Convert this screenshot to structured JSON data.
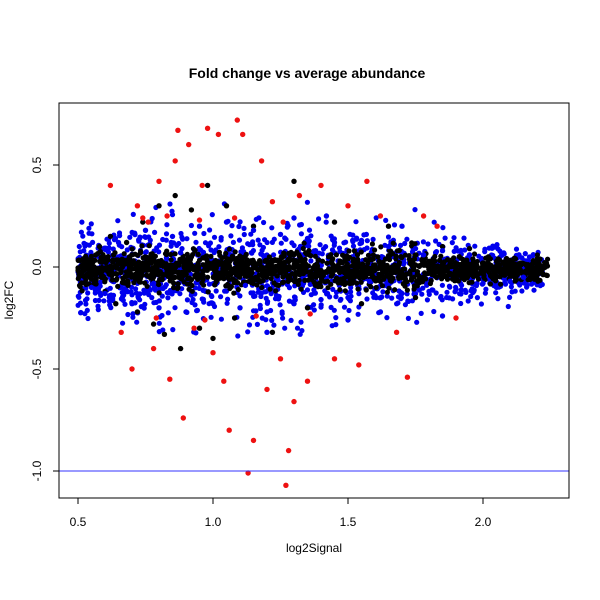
{
  "chart_data": {
    "type": "scatter",
    "title": "Fold change vs average abundance",
    "xlabel": "log2Signal",
    "ylabel": "log2FC",
    "xlim": [
      0.5,
      2.25
    ],
    "ylim": [
      -1.07,
      0.73
    ],
    "x_ticks": [
      0.5,
      1.0,
      1.5,
      2.0
    ],
    "x_tick_labels": [
      "0.5",
      "1.0",
      "1.5",
      "2.0"
    ],
    "y_ticks": [
      -1.0,
      -0.5,
      0.0,
      0.5
    ],
    "y_tick_labels": [
      "-1.0",
      "-0.5",
      "0.0",
      "0.5"
    ],
    "grid": false,
    "legend": "none",
    "reference_lines": [
      {
        "orientation": "horizontal",
        "y": -1.0,
        "color": "#3333ff"
      }
    ],
    "series": [
      {
        "color": "#000000",
        "points": [
          [
            0.52,
            0.04
          ],
          [
            0.55,
            -0.06
          ],
          [
            0.58,
            0.1
          ],
          [
            0.6,
            -0.12
          ],
          [
            0.62,
            0.15
          ],
          [
            0.64,
            -0.18
          ],
          [
            0.68,
            0.12
          ],
          [
            0.72,
            -0.22
          ],
          [
            0.74,
            0.22
          ],
          [
            0.78,
            -0.28
          ],
          [
            0.8,
            0.3
          ],
          [
            0.82,
            -0.33
          ],
          [
            0.86,
            0.35
          ],
          [
            0.88,
            -0.4
          ],
          [
            0.92,
            0.28
          ],
          [
            0.95,
            -0.3
          ],
          [
            0.98,
            0.4
          ],
          [
            1.0,
            -0.35
          ],
          [
            1.05,
            0.3
          ],
          [
            1.08,
            -0.25
          ],
          [
            1.15,
            0.2
          ],
          [
            1.22,
            -0.32
          ],
          [
            1.3,
            0.42
          ],
          [
            1.35,
            -0.2
          ],
          [
            1.45,
            0.22
          ],
          [
            1.55,
            -0.18
          ],
          [
            1.65,
            0.2
          ],
          [
            1.75,
            -0.15
          ],
          [
            1.85,
            0.1
          ],
          [
            1.95,
            0.09
          ],
          [
            2.02,
            0.05
          ],
          [
            2.08,
            -0.04
          ],
          [
            2.12,
            0.04
          ],
          [
            2.18,
            -0.02
          ],
          [
            2.22,
            -0.01
          ],
          [
            0.54,
            0.01
          ],
          [
            0.66,
            -0.02
          ],
          [
            0.9,
            0.02
          ],
          [
            1.1,
            -0.01
          ],
          [
            1.25,
            0.01
          ],
          [
            1.4,
            -0.02
          ],
          [
            1.6,
            0.01
          ],
          [
            1.8,
            -0.01
          ],
          [
            2.0,
            0.02
          ],
          [
            0.7,
            0.06
          ],
          [
            0.96,
            -0.05
          ],
          [
            1.5,
            0.04
          ],
          [
            1.7,
            -0.05
          ]
        ]
      },
      {
        "color": "#0000ee",
        "points": [
          [
            0.55,
            -0.1
          ],
          [
            0.6,
            -0.13
          ],
          [
            0.65,
            0.12
          ],
          [
            0.7,
            -0.18
          ],
          [
            0.75,
            0.18
          ],
          [
            0.8,
            -0.2
          ],
          [
            0.85,
            0.15
          ],
          [
            0.9,
            -0.22
          ],
          [
            0.95,
            0.2
          ],
          [
            1.0,
            -0.18
          ],
          [
            1.05,
            0.22
          ],
          [
            1.1,
            -0.2
          ],
          [
            1.15,
            0.18
          ],
          [
            1.2,
            -0.22
          ],
          [
            1.25,
            0.16
          ],
          [
            1.3,
            -0.18
          ],
          [
            1.35,
            0.14
          ],
          [
            1.4,
            -0.16
          ],
          [
            1.45,
            0.12
          ],
          [
            1.5,
            -0.15
          ],
          [
            1.55,
            0.13
          ],
          [
            1.6,
            -0.14
          ],
          [
            1.65,
            0.1
          ],
          [
            1.7,
            -0.13
          ],
          [
            1.75,
            0.09
          ],
          [
            1.8,
            -0.12
          ],
          [
            1.85,
            0.08
          ],
          [
            1.9,
            -0.11
          ],
          [
            1.95,
            0.06
          ],
          [
            2.0,
            -0.08
          ],
          [
            2.05,
            -0.1
          ],
          [
            2.1,
            -0.07
          ],
          [
            2.15,
            -0.05
          ],
          [
            1.2,
            -0.32
          ],
          [
            1.5,
            -0.26
          ],
          [
            1.3,
            0.24
          ],
          [
            1.7,
            0.2
          ],
          [
            1.85,
            -0.24
          ],
          [
            1.62,
            -0.22
          ],
          [
            1.42,
            0.25
          ],
          [
            0.78,
            -0.08
          ],
          [
            0.88,
            0.07
          ],
          [
            1.12,
            -0.09
          ],
          [
            1.38,
            0.08
          ],
          [
            1.58,
            -0.07
          ],
          [
            1.78,
            0.06
          ]
        ]
      },
      {
        "color": "#ee1111",
        "points": [
          [
            0.62,
            0.4
          ],
          [
            0.66,
            -0.32
          ],
          [
            0.7,
            -0.5
          ],
          [
            0.72,
            0.3
          ],
          [
            0.76,
            0.22
          ],
          [
            0.78,
            -0.4
          ],
          [
            0.8,
            0.42
          ],
          [
            0.84,
            -0.55
          ],
          [
            0.86,
            0.52
          ],
          [
            0.87,
            0.67
          ],
          [
            0.89,
            -0.74
          ],
          [
            0.91,
            0.6
          ],
          [
            0.93,
            -0.3
          ],
          [
            0.96,
            0.4
          ],
          [
            0.98,
            0.68
          ],
          [
            1.0,
            -0.42
          ],
          [
            1.02,
            0.65
          ],
          [
            1.04,
            -0.56
          ],
          [
            1.06,
            -0.8
          ],
          [
            1.09,
            0.72
          ],
          [
            1.11,
            0.65
          ],
          [
            1.13,
            -1.01
          ],
          [
            1.15,
            -0.85
          ],
          [
            1.18,
            0.52
          ],
          [
            1.2,
            -0.6
          ],
          [
            1.22,
            0.32
          ],
          [
            1.25,
            -0.45
          ],
          [
            1.27,
            -1.07
          ],
          [
            1.28,
            -0.9
          ],
          [
            1.3,
            -0.66
          ],
          [
            1.32,
            0.35
          ],
          [
            1.35,
            -0.56
          ],
          [
            1.4,
            0.4
          ],
          [
            1.45,
            -0.45
          ],
          [
            1.5,
            0.3
          ],
          [
            1.54,
            -0.48
          ],
          [
            1.57,
            0.42
          ],
          [
            1.62,
            0.25
          ],
          [
            1.68,
            -0.32
          ],
          [
            1.72,
            -0.54
          ],
          [
            1.78,
            0.25
          ],
          [
            1.83,
            0.2
          ],
          [
            1.9,
            -0.25
          ],
          [
            0.74,
            0.24
          ],
          [
            0.83,
            0.25
          ],
          [
            0.95,
            0.23
          ],
          [
            1.08,
            0.24
          ],
          [
            1.26,
            0.22
          ],
          [
            0.79,
            -0.25
          ],
          [
            0.97,
            -0.26
          ],
          [
            1.16,
            -0.24
          ],
          [
            1.36,
            -0.23
          ]
        ]
      }
    ]
  }
}
